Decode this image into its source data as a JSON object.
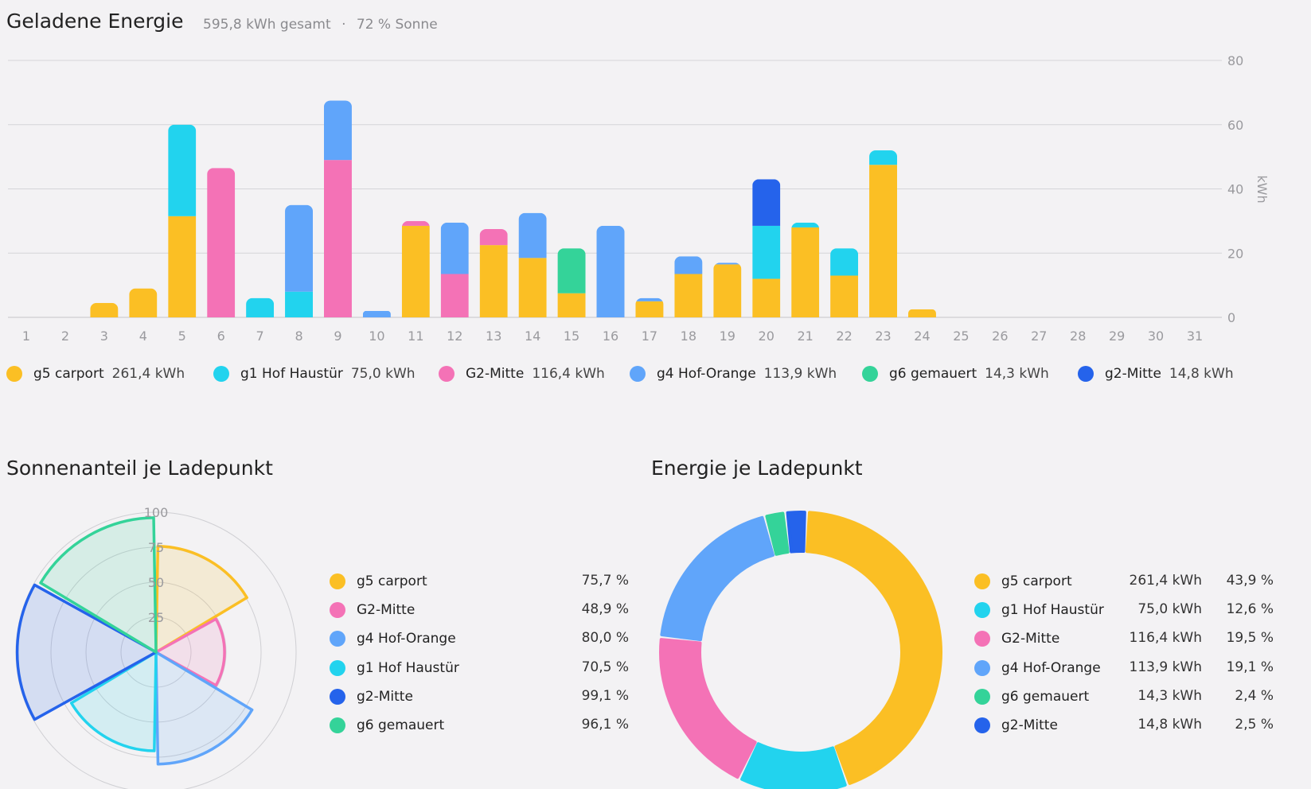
{
  "energy": {
    "title": "Geladene Energie",
    "total": "595,8 kWh gesamt",
    "separator": "·",
    "sun_share": "72 % Sonne"
  },
  "solar_section": {
    "title": "Sonnenanteil je Ladepunkt"
  },
  "donut_section": {
    "title": "Energie je Ladepunkt"
  },
  "chart_data": [
    {
      "type": "bar",
      "stacked": true,
      "title": "Geladene Energie",
      "ylabel": "kWh",
      "ylim": [
        0,
        80
      ],
      "yticks": [
        0,
        20,
        40,
        60,
        80
      ],
      "y_axis_side": "right",
      "grid": true,
      "legend": "bottom",
      "categories": [
        "1",
        "2",
        "3",
        "4",
        "5",
        "6",
        "7",
        "8",
        "9",
        "10",
        "11",
        "12",
        "13",
        "14",
        "15",
        "16",
        "17",
        "18",
        "19",
        "20",
        "21",
        "22",
        "23",
        "24",
        "25",
        "26",
        "27",
        "28",
        "29",
        "30",
        "31"
      ],
      "series": [
        {
          "name": "g5 carport",
          "total": "261,4 kWh",
          "color": "#fbbf24",
          "values": [
            0,
            0,
            4.5,
            9,
            31.5,
            0,
            0,
            0,
            0,
            0,
            28.5,
            0,
            22.5,
            18.5,
            7.5,
            0,
            5,
            13.5,
            16.5,
            12,
            28,
            13,
            47.5,
            2.5,
            0,
            0,
            0,
            0,
            0,
            0,
            0
          ]
        },
        {
          "name": "g1 Hof Haustür",
          "total": "75,0 kWh",
          "color": "#22d3ee",
          "values": [
            0,
            0,
            0,
            0,
            28.5,
            0,
            6,
            8,
            0,
            0,
            0,
            0,
            0,
            0,
            0,
            0,
            0,
            0,
            0,
            16.5,
            1.5,
            8.5,
            4.5,
            0,
            0,
            0,
            0,
            0,
            0,
            0,
            0
          ]
        },
        {
          "name": "G2-Mitte",
          "total": "116,4 kWh",
          "color": "#f472b6",
          "values": [
            0,
            0,
            0,
            0,
            0,
            46.5,
            0,
            0,
            49,
            0,
            1.5,
            13.5,
            5,
            0,
            0,
            0,
            0,
            0,
            0,
            0,
            0,
            0,
            0,
            0,
            0,
            0,
            0,
            0,
            0,
            0,
            0
          ]
        },
        {
          "name": "g4 Hof-Orange",
          "total": "113,9 kWh",
          "color": "#60a5fa",
          "values": [
            0,
            0,
            0,
            0,
            0,
            0,
            0,
            27,
            18.5,
            2,
            0,
            16,
            0,
            14,
            0,
            28.5,
            1,
            5.5,
            0.5,
            0,
            0,
            0,
            0,
            0,
            0,
            0,
            0,
            0,
            0,
            0,
            0
          ]
        },
        {
          "name": "g6 gemauert",
          "total": "14,3 kWh",
          "color": "#34d399",
          "values": [
            0,
            0,
            0,
            0,
            0,
            0,
            0,
            0,
            0,
            0,
            0,
            0,
            0,
            0,
            14,
            0,
            0,
            0,
            0,
            0,
            0,
            0,
            0,
            0,
            0,
            0,
            0,
            0,
            0,
            0,
            0
          ]
        },
        {
          "name": "g2-Mitte",
          "total": "14,8 kWh",
          "color": "#2563eb",
          "values": [
            0,
            0,
            0,
            0,
            0,
            0,
            0,
            0,
            0,
            0,
            0,
            0,
            0,
            0,
            0,
            0,
            0,
            0,
            0,
            14.5,
            0,
            0,
            0,
            0,
            0,
            0,
            0,
            0,
            0,
            0,
            0
          ]
        }
      ]
    },
    {
      "type": "polar-area",
      "title": "Sonnenanteil je Ladepunkt",
      "rlim": [
        0,
        100
      ],
      "rticks": [
        25,
        50,
        75,
        100
      ],
      "series": [
        {
          "name": "g5 carport",
          "value": 75.7,
          "label": "75,7 %",
          "color": "#fbbf24"
        },
        {
          "name": "G2-Mitte",
          "value": 48.9,
          "label": "48,9 %",
          "color": "#f472b6"
        },
        {
          "name": "g4 Hof-Orange",
          "value": 80.0,
          "label": "80,0 %",
          "color": "#60a5fa"
        },
        {
          "name": "g1 Hof Haustür",
          "value": 70.5,
          "label": "70,5 %",
          "color": "#22d3ee"
        },
        {
          "name": "g2-Mitte",
          "value": 99.1,
          "label": "99,1 %",
          "color": "#2563eb"
        },
        {
          "name": "g6 gemauert",
          "value": 96.1,
          "label": "96,1 %",
          "color": "#34d399"
        }
      ]
    },
    {
      "type": "pie",
      "donut": true,
      "title": "Energie je Ladepunkt",
      "series": [
        {
          "name": "g5 carport",
          "value": 261.4,
          "energy": "261,4 kWh",
          "share": "43,9 %",
          "color": "#fbbf24"
        },
        {
          "name": "g1 Hof Haustür",
          "value": 75.0,
          "energy": "75,0 kWh",
          "share": "12,6 %",
          "color": "#22d3ee"
        },
        {
          "name": "G2-Mitte",
          "value": 116.4,
          "energy": "116,4 kWh",
          "share": "19,5 %",
          "color": "#f472b6"
        },
        {
          "name": "g4 Hof-Orange",
          "value": 113.9,
          "energy": "113,9 kWh",
          "share": "19,1 %",
          "color": "#60a5fa"
        },
        {
          "name": "g6 gemauert",
          "value": 14.3,
          "energy": "14,3 kWh",
          "share": "2,4 %",
          "color": "#34d399"
        },
        {
          "name": "g2-Mitte",
          "value": 14.8,
          "energy": "14,8 kWh",
          "share": "2,5 %",
          "color": "#2563eb"
        }
      ]
    }
  ]
}
